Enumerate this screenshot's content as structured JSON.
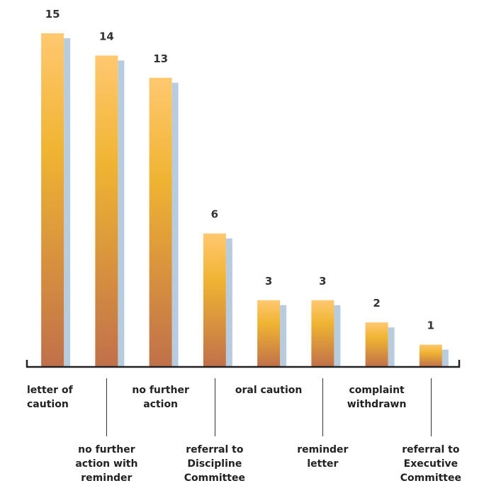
{
  "chart_data": {
    "type": "bar",
    "title": "",
    "xlabel": "",
    "ylabel": "",
    "categories": [
      "letter of caution",
      "no further action with reminder",
      "no further action",
      "referral to Discipline Committee",
      "oral caution",
      "reminder letter",
      "complaint withdrawn",
      "referral to Executive Committee"
    ],
    "values": [
      15,
      14,
      13,
      6,
      3,
      3,
      2,
      1
    ],
    "value_labels": [
      "15",
      "14",
      "13",
      "6",
      "3",
      "3",
      "2",
      "1"
    ],
    "ylim": [
      0,
      15
    ],
    "grid": false,
    "legend": "none"
  },
  "colors": {
    "bar_top": "#ffc870",
    "bar_mid": "#f0b432",
    "bar_bottom": "#c0704a",
    "bar_shadow": "#b8cce0",
    "axis": "#222222"
  }
}
